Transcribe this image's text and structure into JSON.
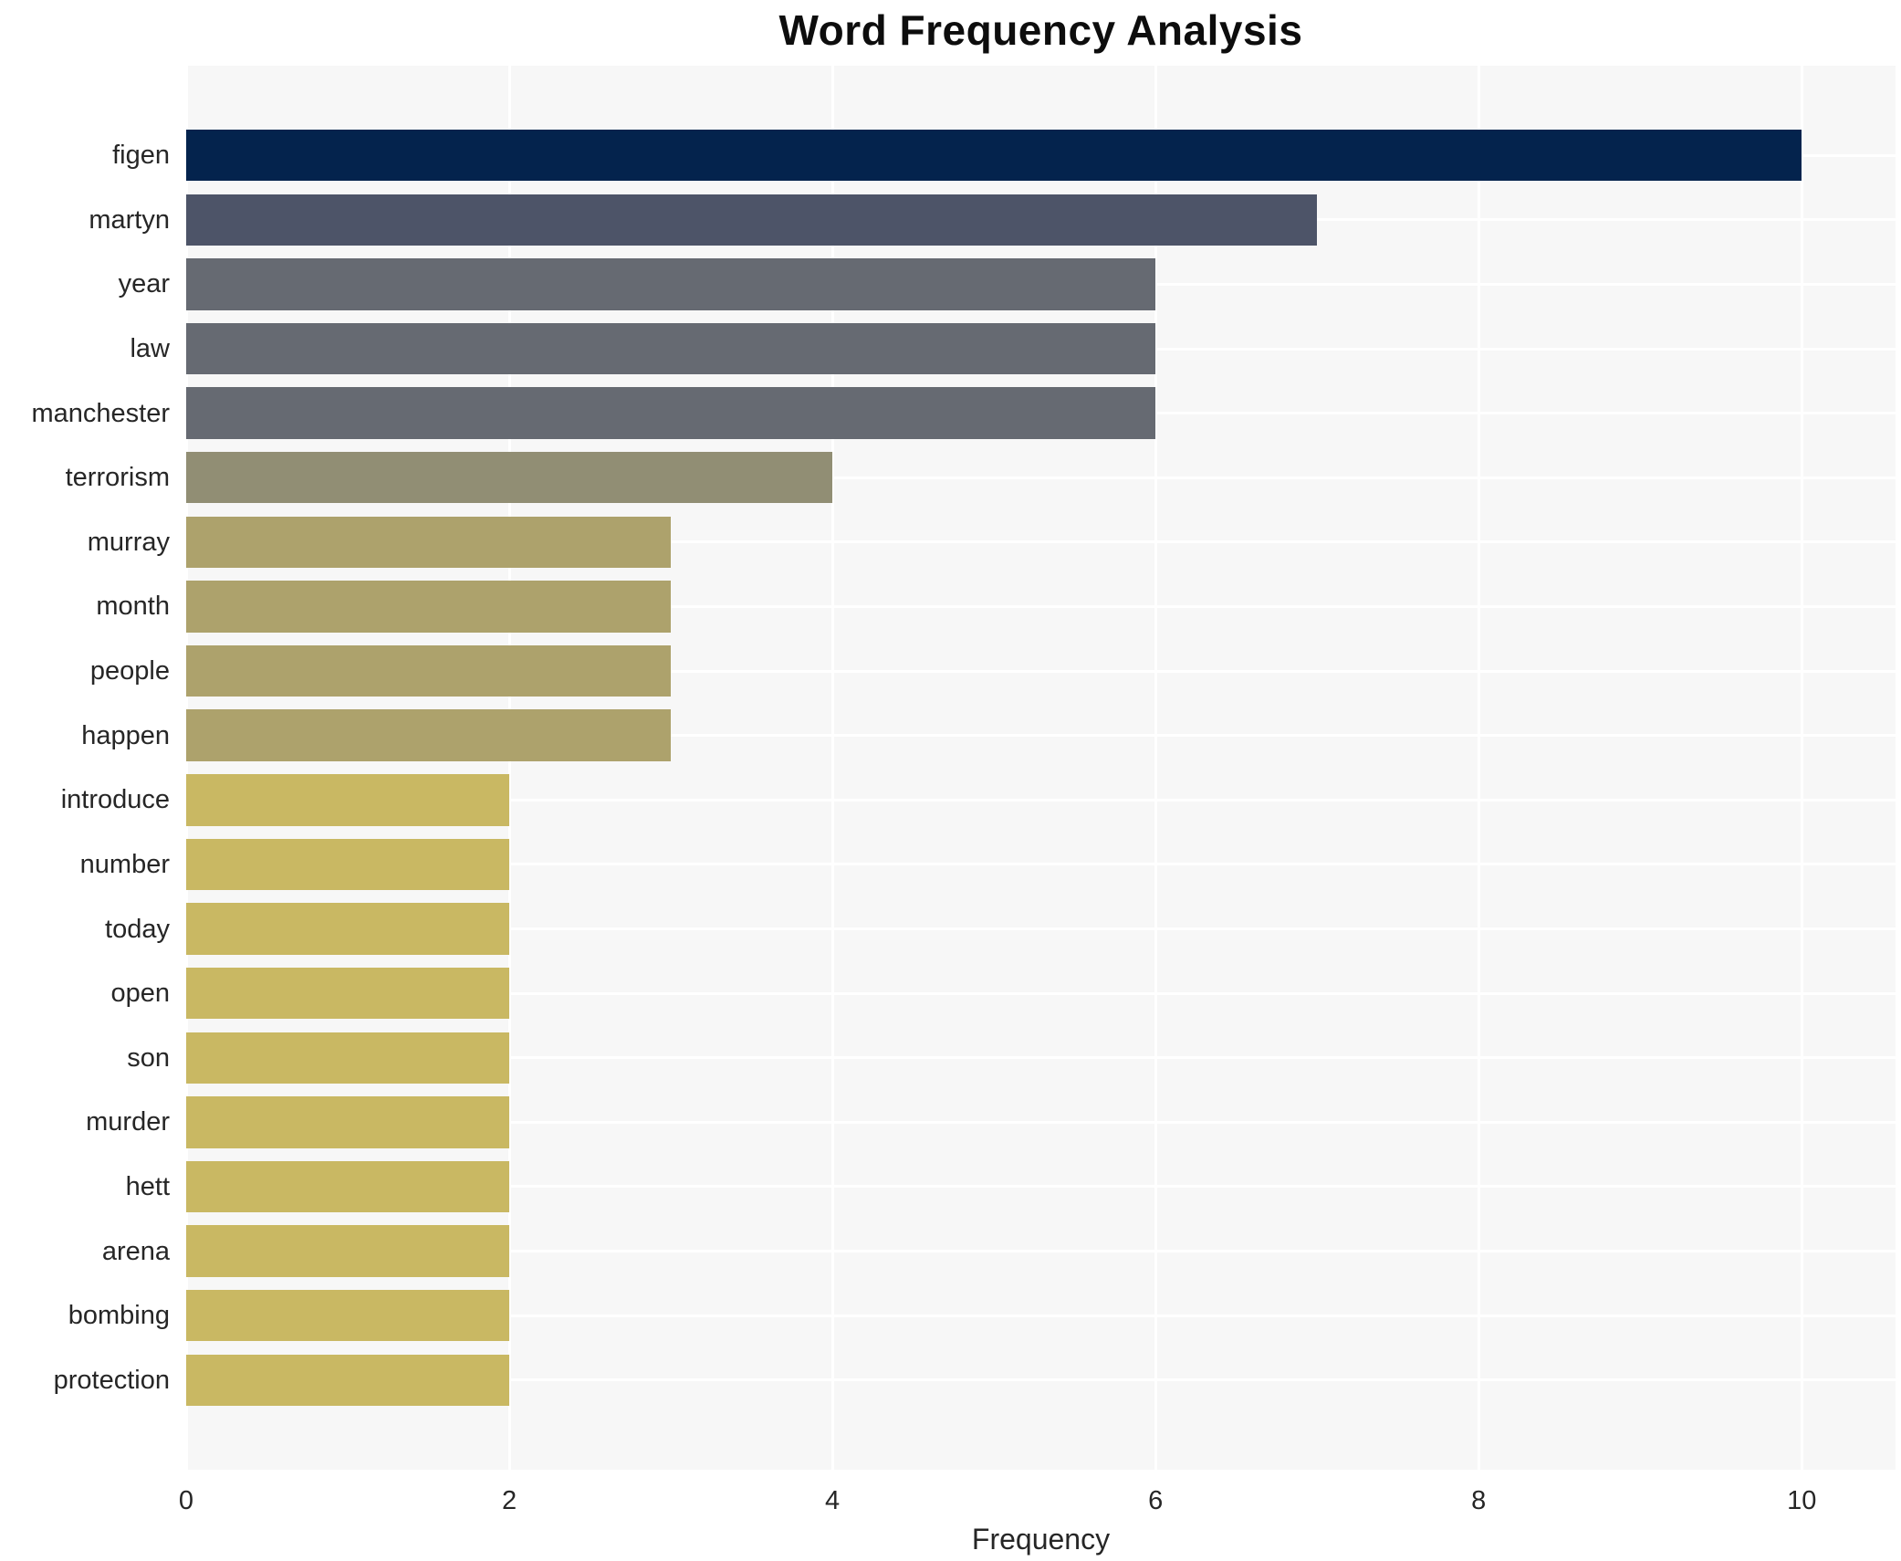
{
  "chart_data": {
    "type": "bar",
    "orientation": "horizontal",
    "title": "Word Frequency Analysis",
    "xlabel": "Frequency",
    "ylabel": "",
    "categories": [
      "figen",
      "martyn",
      "year",
      "law",
      "manchester",
      "terrorism",
      "murray",
      "month",
      "people",
      "happen",
      "introduce",
      "number",
      "today",
      "open",
      "son",
      "murder",
      "hett",
      "arena",
      "bombing",
      "protection"
    ],
    "values": [
      10,
      7,
      6,
      6,
      6,
      4,
      3,
      3,
      3,
      3,
      2,
      2,
      2,
      2,
      2,
      2,
      2,
      2,
      2,
      2
    ],
    "bar_colors": [
      "#04234d",
      "#4d5468",
      "#666a72",
      "#666a72",
      "#666a72",
      "#918e74",
      "#ada26c",
      "#ada26c",
      "#ada26c",
      "#ada26c",
      "#c9b863",
      "#c9b863",
      "#c9b863",
      "#c9b863",
      "#c9b863",
      "#c9b863",
      "#c9b863",
      "#c9b863",
      "#c9b863",
      "#c9b863"
    ],
    "xticks": [
      0,
      2,
      4,
      6,
      8,
      10
    ],
    "xtick_labels": [
      "0",
      "2",
      "4",
      "6",
      "8",
      "10"
    ],
    "xlim": [
      0,
      10.58
    ],
    "grid": true,
    "legend": false,
    "colors": {
      "plot_bg": "#f7f7f7",
      "page_bg": "#ffffff",
      "gridline": "#ffffff",
      "tick_text": "#262626",
      "title_text": "#0d0d0d"
    }
  }
}
